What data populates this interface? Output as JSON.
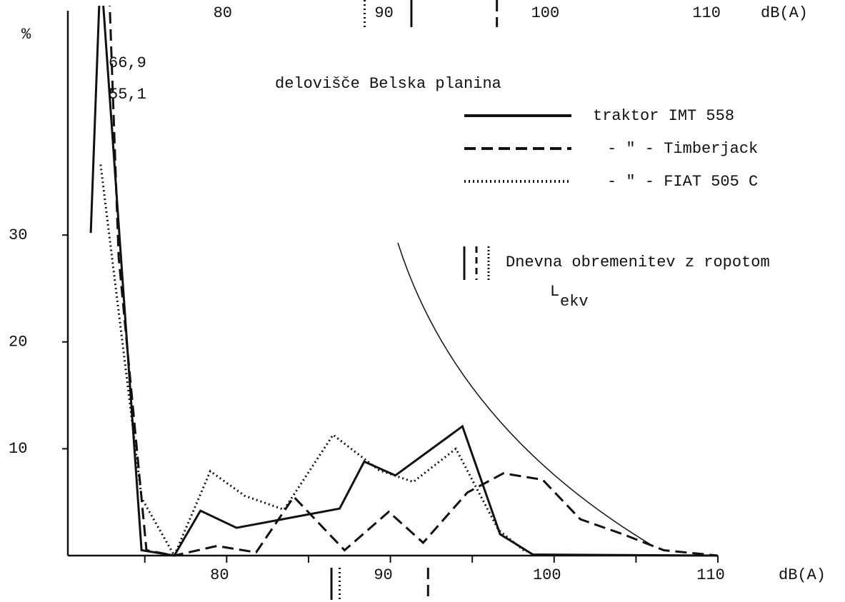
{
  "chart_data": {
    "type": "line",
    "y_unit_label": "%",
    "x_label": "dB(A)",
    "x_label_top": "dB(A)",
    "legend_title": "delovišče Belska planina",
    "annotations": [
      "66,9",
      "55,1"
    ],
    "lekv_legend": "Dnevna obremenitev z ropotom",
    "lekv_symbol": "L",
    "lekv_subscript": "ekv",
    "xlim": [
      70.3,
      110
    ],
    "xticks": [
      80,
      90,
      100,
      110
    ],
    "minor_xticks": [
      75,
      85,
      95,
      105
    ],
    "x2lim": [
      70.4,
      110.7
    ],
    "x2ticks": [
      80,
      90,
      100,
      110
    ],
    "ylim": [
      0,
      51
    ],
    "yticks": [
      10,
      20,
      30
    ],
    "series": [
      {
        "name": "traktor IMT 558",
        "color": "#111111",
        "dash": "solid",
        "x": [
          71.7,
          72.3,
          74.8,
          76.8,
          78.4,
          80.6,
          86.9,
          88.4,
          90.3,
          94.4,
          96.7,
          98.7,
          110
        ],
        "values": [
          30.2,
          55.1,
          0.5,
          0,
          4.2,
          2.6,
          4.4,
          8.8,
          7.5,
          12.1,
          2.0,
          0.1,
          0
        ],
        "lekv": 86.4,
        "lekv_top": 91.7
      },
      {
        "name": "- \" - Timberjack",
        "color": "#111111",
        "dash": "dashed",
        "x": [
          72.5,
          73.4,
          75.1,
          76.8,
          79.4,
          81.8,
          84.1,
          87.2,
          89.9,
          92.0,
          94.7,
          96.9,
          99.3,
          101.6,
          104.2,
          106.7,
          110
        ],
        "values": [
          66.9,
          28,
          0.5,
          0,
          0.9,
          0.3,
          5.5,
          0.5,
          4.1,
          1.2,
          5.9,
          7.7,
          7.1,
          3.4,
          2.0,
          0.5,
          0
        ],
        "lekv": 92.3,
        "lekv_top": 97.0
      },
      {
        "name": "- \" - FIAT 505 C",
        "color": "#111111",
        "dash": "dotted",
        "x": [
          72.3,
          74.8,
          76.8,
          79.0,
          81.1,
          83.5,
          86.5,
          89.3,
          91.4,
          94.0,
          96.6,
          98.3
        ],
        "values": [
          36.6,
          5.4,
          0,
          7.9,
          5.6,
          4.3,
          11.3,
          8.0,
          6.9,
          10.0,
          2.4,
          0.3
        ],
        "lekv": 86.9,
        "lekv_top": 88.8
      }
    ]
  }
}
